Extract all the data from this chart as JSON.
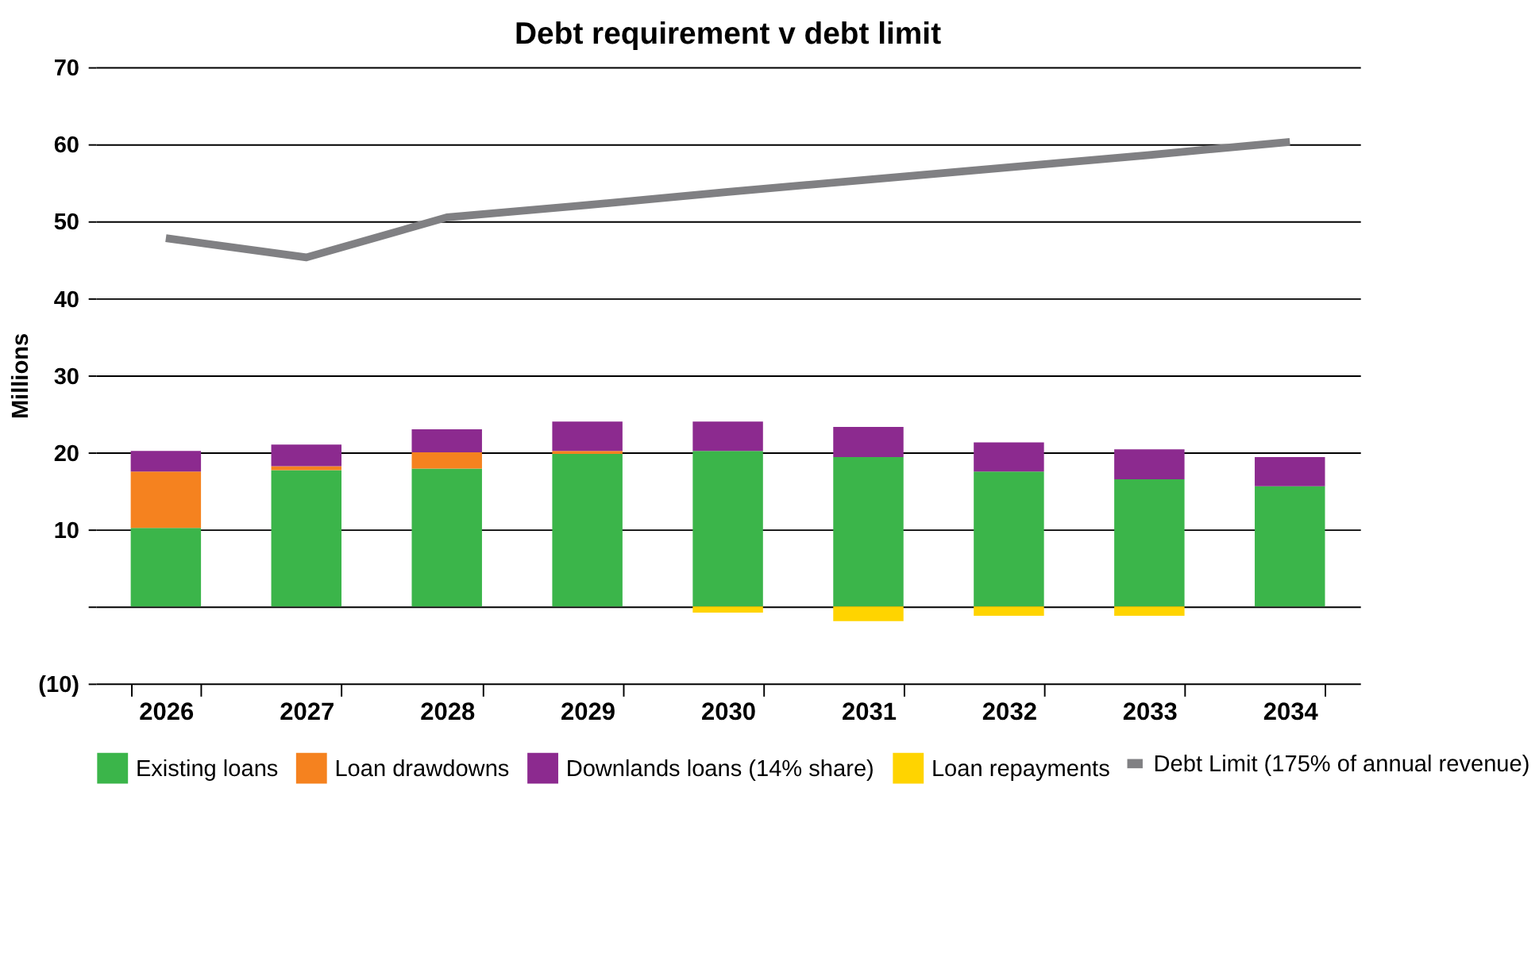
{
  "chart_data": {
    "type": "bar",
    "title": "Debt requirement v debt limit",
    "ylabel": "Millions",
    "stacked": true,
    "categories": [
      "2026",
      "2027",
      "2028",
      "2029",
      "2030",
      "2031",
      "2032",
      "2033",
      "2034"
    ],
    "series": [
      {
        "name": "Existing loans",
        "color": "#3bb54a",
        "values": [
          10.2,
          17.7,
          17.9,
          19.8,
          20.2,
          19.4,
          17.5,
          16.5,
          15.6
        ]
      },
      {
        "name": "Loan drawdowns",
        "color": "#f5821f",
        "values": [
          7.3,
          0.5,
          2.1,
          0.4,
          0,
          0,
          0,
          0,
          0
        ]
      },
      {
        "name": "Downlands loans (14% share)",
        "color": "#8c2a8f",
        "values": [
          2.7,
          2.8,
          3.0,
          3.8,
          3.8,
          3.9,
          3.8,
          3.9,
          3.8
        ]
      },
      {
        "name": "Loan repayments",
        "color": "#ffd400",
        "values": [
          0,
          0,
          0,
          0,
          -0.8,
          -1.9,
          -1.2,
          -1.2,
          0
        ]
      },
      {
        "name": "Debt Limit (175% of annual revenue)",
        "type": "line",
        "color": "#808083",
        "values": [
          47.8,
          45.3,
          50.5,
          52.1,
          53.8,
          55.4,
          57.0,
          58.6,
          60.3
        ]
      }
    ],
    "ylim": [
      -10,
      70
    ],
    "yticks": [
      {
        "value": -10,
        "label": "(10)"
      },
      {
        "value": 0,
        "label": null
      },
      10,
      20,
      30,
      40,
      50,
      60,
      70
    ],
    "grid": "y",
    "legend": "bottom"
  }
}
